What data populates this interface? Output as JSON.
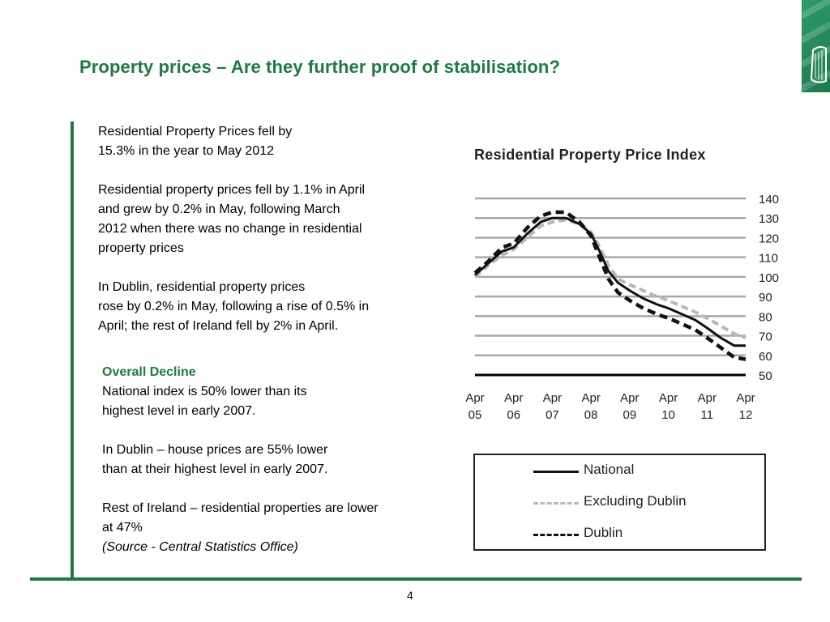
{
  "slide": {
    "title": "Property prices – Are they further proof of stabilisation?",
    "page_number": "4"
  },
  "left_text": {
    "p1": [
      "Residential Property Prices fell by",
      "15.3% in the year to May 2012"
    ],
    "p2": [
      "Residential property prices fell by 1.1% in April",
      "and grew by 0.2% in May, following  March",
      "2012 when there was no change in residential",
      "property prices"
    ],
    "p3": [
      "In Dublin, residential property prices",
      "rose by 0.2% in May, following a rise of 0.5% in",
      "April; the rest of Ireland fell by 2% in April."
    ],
    "overall_heading": "Overall Decline",
    "p4": [
      "National index is 50% lower than its",
      "highest level in early 2007."
    ],
    "p5": [
      "In Dublin – house prices are 55% lower",
      "than at their highest level in early 2007."
    ],
    "p6": [
      "Rest of Ireland – residential properties are lower",
      "at 47%"
    ],
    "source": "(Source - Central Statistics Office)"
  },
  "colors": {
    "accent": "#1e7a43",
    "national": "#111111",
    "excluding_dublin": "#b8b8b8",
    "dublin": "#111111",
    "grid": "#a8a8a8"
  },
  "chart_data": {
    "type": "line",
    "title": "Residential Property Price Index",
    "xlabel": "",
    "ylabel": "",
    "x_ticks": [
      [
        "Apr",
        "05"
      ],
      [
        "Apr",
        "06"
      ],
      [
        "Apr",
        "07"
      ],
      [
        "Apr",
        "08"
      ],
      [
        "Apr",
        "09"
      ],
      [
        "Apr",
        "10"
      ],
      [
        "Apr",
        "11"
      ],
      [
        "Apr",
        "12"
      ]
    ],
    "y_ticks": [
      "140",
      "130",
      "120",
      "110",
      "100",
      "90",
      "80",
      "70",
      "60",
      "50"
    ],
    "ylim": [
      50,
      140
    ],
    "xlim": [
      2005.25,
      2012.25
    ],
    "y_axis_side": "right",
    "grid": true,
    "legend_position": "below",
    "series": [
      {
        "name": "National",
        "style": "solid",
        "points": [
          [
            2005.25,
            101
          ],
          [
            2005.6,
            107
          ],
          [
            2005.95,
            113
          ],
          [
            2006.25,
            115
          ],
          [
            2006.6,
            122
          ],
          [
            2006.95,
            128
          ],
          [
            2007.25,
            130
          ],
          [
            2007.6,
            130
          ],
          [
            2007.95,
            127
          ],
          [
            2008.25,
            122
          ],
          [
            2008.45,
            114
          ],
          [
            2008.7,
            103
          ],
          [
            2008.95,
            97
          ],
          [
            2009.25,
            93
          ],
          [
            2009.6,
            89
          ],
          [
            2009.95,
            86
          ],
          [
            2010.25,
            84
          ],
          [
            2010.6,
            81
          ],
          [
            2010.95,
            78
          ],
          [
            2011.25,
            74
          ],
          [
            2011.6,
            69
          ],
          [
            2011.95,
            65
          ],
          [
            2012.25,
            65
          ]
        ]
      },
      {
        "name": "Excluding Dublin",
        "style": "dashed-light",
        "points": [
          [
            2005.25,
            100
          ],
          [
            2005.6,
            106
          ],
          [
            2005.95,
            111
          ],
          [
            2006.25,
            114
          ],
          [
            2006.6,
            120
          ],
          [
            2006.95,
            126
          ],
          [
            2007.25,
            128
          ],
          [
            2007.6,
            129
          ],
          [
            2007.95,
            127
          ],
          [
            2008.25,
            123
          ],
          [
            2008.45,
            116
          ],
          [
            2008.7,
            106
          ],
          [
            2008.95,
            99
          ],
          [
            2009.25,
            96
          ],
          [
            2009.6,
            93
          ],
          [
            2009.95,
            90
          ],
          [
            2010.25,
            88
          ],
          [
            2010.6,
            85
          ],
          [
            2010.95,
            82
          ],
          [
            2011.25,
            79
          ],
          [
            2011.6,
            75
          ],
          [
            2011.95,
            71
          ],
          [
            2012.25,
            69
          ]
        ]
      },
      {
        "name": "Dublin",
        "style": "dashed-bold",
        "points": [
          [
            2005.25,
            102
          ],
          [
            2005.6,
            108
          ],
          [
            2005.95,
            115
          ],
          [
            2006.25,
            117
          ],
          [
            2006.6,
            125
          ],
          [
            2006.95,
            131
          ],
          [
            2007.25,
            133
          ],
          [
            2007.6,
            133
          ],
          [
            2007.95,
            128
          ],
          [
            2008.25,
            121
          ],
          [
            2008.45,
            111
          ],
          [
            2008.7,
            99
          ],
          [
            2008.95,
            92
          ],
          [
            2009.25,
            88
          ],
          [
            2009.6,
            84
          ],
          [
            2009.95,
            81
          ],
          [
            2010.25,
            79
          ],
          [
            2010.6,
            76
          ],
          [
            2010.95,
            73
          ],
          [
            2011.25,
            69
          ],
          [
            2011.6,
            64
          ],
          [
            2011.95,
            59
          ],
          [
            2012.25,
            58
          ]
        ]
      }
    ]
  }
}
